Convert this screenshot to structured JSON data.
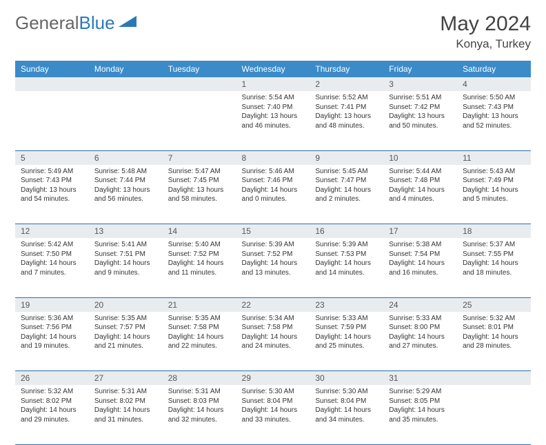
{
  "logo": {
    "part1": "General",
    "part2": "Blue"
  },
  "header": {
    "month_title": "May 2024",
    "location": "Konya, Turkey"
  },
  "colors": {
    "header_bg": "#3b8bc9",
    "header_fg": "#ffffff",
    "daynum_bg": "#e9ecef",
    "border": "#2a6fa8",
    "text": "#333333"
  },
  "day_labels": [
    "Sunday",
    "Monday",
    "Tuesday",
    "Wednesday",
    "Thursday",
    "Friday",
    "Saturday"
  ],
  "weeks": [
    [
      null,
      null,
      null,
      {
        "n": "1",
        "sr": "Sunrise: 5:54 AM",
        "ss": "Sunset: 7:40 PM",
        "d1": "Daylight: 13 hours",
        "d2": "and 46 minutes."
      },
      {
        "n": "2",
        "sr": "Sunrise: 5:52 AM",
        "ss": "Sunset: 7:41 PM",
        "d1": "Daylight: 13 hours",
        "d2": "and 48 minutes."
      },
      {
        "n": "3",
        "sr": "Sunrise: 5:51 AM",
        "ss": "Sunset: 7:42 PM",
        "d1": "Daylight: 13 hours",
        "d2": "and 50 minutes."
      },
      {
        "n": "4",
        "sr": "Sunrise: 5:50 AM",
        "ss": "Sunset: 7:43 PM",
        "d1": "Daylight: 13 hours",
        "d2": "and 52 minutes."
      }
    ],
    [
      {
        "n": "5",
        "sr": "Sunrise: 5:49 AM",
        "ss": "Sunset: 7:43 PM",
        "d1": "Daylight: 13 hours",
        "d2": "and 54 minutes."
      },
      {
        "n": "6",
        "sr": "Sunrise: 5:48 AM",
        "ss": "Sunset: 7:44 PM",
        "d1": "Daylight: 13 hours",
        "d2": "and 56 minutes."
      },
      {
        "n": "7",
        "sr": "Sunrise: 5:47 AM",
        "ss": "Sunset: 7:45 PM",
        "d1": "Daylight: 13 hours",
        "d2": "and 58 minutes."
      },
      {
        "n": "8",
        "sr": "Sunrise: 5:46 AM",
        "ss": "Sunset: 7:46 PM",
        "d1": "Daylight: 14 hours",
        "d2": "and 0 minutes."
      },
      {
        "n": "9",
        "sr": "Sunrise: 5:45 AM",
        "ss": "Sunset: 7:47 PM",
        "d1": "Daylight: 14 hours",
        "d2": "and 2 minutes."
      },
      {
        "n": "10",
        "sr": "Sunrise: 5:44 AM",
        "ss": "Sunset: 7:48 PM",
        "d1": "Daylight: 14 hours",
        "d2": "and 4 minutes."
      },
      {
        "n": "11",
        "sr": "Sunrise: 5:43 AM",
        "ss": "Sunset: 7:49 PM",
        "d1": "Daylight: 14 hours",
        "d2": "and 5 minutes."
      }
    ],
    [
      {
        "n": "12",
        "sr": "Sunrise: 5:42 AM",
        "ss": "Sunset: 7:50 PM",
        "d1": "Daylight: 14 hours",
        "d2": "and 7 minutes."
      },
      {
        "n": "13",
        "sr": "Sunrise: 5:41 AM",
        "ss": "Sunset: 7:51 PM",
        "d1": "Daylight: 14 hours",
        "d2": "and 9 minutes."
      },
      {
        "n": "14",
        "sr": "Sunrise: 5:40 AM",
        "ss": "Sunset: 7:52 PM",
        "d1": "Daylight: 14 hours",
        "d2": "and 11 minutes."
      },
      {
        "n": "15",
        "sr": "Sunrise: 5:39 AM",
        "ss": "Sunset: 7:52 PM",
        "d1": "Daylight: 14 hours",
        "d2": "and 13 minutes."
      },
      {
        "n": "16",
        "sr": "Sunrise: 5:39 AM",
        "ss": "Sunset: 7:53 PM",
        "d1": "Daylight: 14 hours",
        "d2": "and 14 minutes."
      },
      {
        "n": "17",
        "sr": "Sunrise: 5:38 AM",
        "ss": "Sunset: 7:54 PM",
        "d1": "Daylight: 14 hours",
        "d2": "and 16 minutes."
      },
      {
        "n": "18",
        "sr": "Sunrise: 5:37 AM",
        "ss": "Sunset: 7:55 PM",
        "d1": "Daylight: 14 hours",
        "d2": "and 18 minutes."
      }
    ],
    [
      {
        "n": "19",
        "sr": "Sunrise: 5:36 AM",
        "ss": "Sunset: 7:56 PM",
        "d1": "Daylight: 14 hours",
        "d2": "and 19 minutes."
      },
      {
        "n": "20",
        "sr": "Sunrise: 5:35 AM",
        "ss": "Sunset: 7:57 PM",
        "d1": "Daylight: 14 hours",
        "d2": "and 21 minutes."
      },
      {
        "n": "21",
        "sr": "Sunrise: 5:35 AM",
        "ss": "Sunset: 7:58 PM",
        "d1": "Daylight: 14 hours",
        "d2": "and 22 minutes."
      },
      {
        "n": "22",
        "sr": "Sunrise: 5:34 AM",
        "ss": "Sunset: 7:58 PM",
        "d1": "Daylight: 14 hours",
        "d2": "and 24 minutes."
      },
      {
        "n": "23",
        "sr": "Sunrise: 5:33 AM",
        "ss": "Sunset: 7:59 PM",
        "d1": "Daylight: 14 hours",
        "d2": "and 25 minutes."
      },
      {
        "n": "24",
        "sr": "Sunrise: 5:33 AM",
        "ss": "Sunset: 8:00 PM",
        "d1": "Daylight: 14 hours",
        "d2": "and 27 minutes."
      },
      {
        "n": "25",
        "sr": "Sunrise: 5:32 AM",
        "ss": "Sunset: 8:01 PM",
        "d1": "Daylight: 14 hours",
        "d2": "and 28 minutes."
      }
    ],
    [
      {
        "n": "26",
        "sr": "Sunrise: 5:32 AM",
        "ss": "Sunset: 8:02 PM",
        "d1": "Daylight: 14 hours",
        "d2": "and 29 minutes."
      },
      {
        "n": "27",
        "sr": "Sunrise: 5:31 AM",
        "ss": "Sunset: 8:02 PM",
        "d1": "Daylight: 14 hours",
        "d2": "and 31 minutes."
      },
      {
        "n": "28",
        "sr": "Sunrise: 5:31 AM",
        "ss": "Sunset: 8:03 PM",
        "d1": "Daylight: 14 hours",
        "d2": "and 32 minutes."
      },
      {
        "n": "29",
        "sr": "Sunrise: 5:30 AM",
        "ss": "Sunset: 8:04 PM",
        "d1": "Daylight: 14 hours",
        "d2": "and 33 minutes."
      },
      {
        "n": "30",
        "sr": "Sunrise: 5:30 AM",
        "ss": "Sunset: 8:04 PM",
        "d1": "Daylight: 14 hours",
        "d2": "and 34 minutes."
      },
      {
        "n": "31",
        "sr": "Sunrise: 5:29 AM",
        "ss": "Sunset: 8:05 PM",
        "d1": "Daylight: 14 hours",
        "d2": "and 35 minutes."
      },
      null
    ]
  ]
}
